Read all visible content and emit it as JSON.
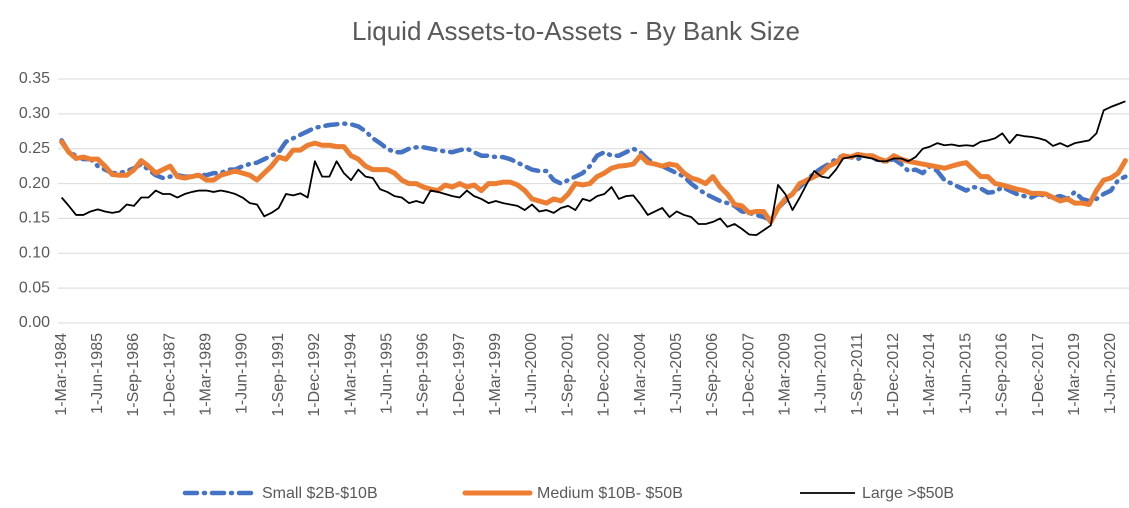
{
  "chart_data": {
    "type": "line",
    "title": "Liquid Assets-to-Assets - By Bank Size",
    "categories": [
      "1-Mar-1984",
      null,
      null,
      null,
      null,
      "1-Jun-1985",
      null,
      null,
      null,
      null,
      "1-Sep-1986",
      null,
      null,
      null,
      null,
      "1-Dec-1987",
      null,
      null,
      null,
      null,
      "1-Mar-1989",
      null,
      null,
      null,
      null,
      "1-Jun-1990",
      null,
      null,
      null,
      null,
      "1-Sep-1991",
      null,
      null,
      null,
      null,
      "1-Dec-1992",
      null,
      null,
      null,
      null,
      "1-Mar-1994",
      null,
      null,
      null,
      null,
      "1-Jun-1995",
      null,
      null,
      null,
      null,
      "1-Sep-1996",
      null,
      null,
      null,
      null,
      "1-Dec-1997",
      null,
      null,
      null,
      null,
      "1-Mar-1999",
      null,
      null,
      null,
      null,
      "1-Jun-2000",
      null,
      null,
      null,
      null,
      "1-Sep-2001",
      null,
      null,
      null,
      null,
      "1-Dec-2002",
      null,
      null,
      null,
      null,
      "1-Mar-2004",
      null,
      null,
      null,
      null,
      "1-Jun-2005",
      null,
      null,
      null,
      null,
      "1-Sep-2006",
      null,
      null,
      null,
      null,
      "1-Dec-2007",
      null,
      null,
      null,
      null,
      "1-Mar-2009",
      null,
      null,
      null,
      null,
      "1-Jun-2010",
      null,
      null,
      null,
      null,
      "1-Sep-2011",
      null,
      null,
      null,
      null,
      "1-Dec-2012",
      null,
      null,
      null,
      null,
      "1-Mar-2014",
      null,
      null,
      null,
      null,
      "1-Jun-2015",
      null,
      null,
      null,
      null,
      "1-Sep-2016",
      null,
      null,
      null,
      null,
      "1-Dec-2017",
      null,
      null,
      null,
      null,
      "1-Mar-2019",
      null,
      null,
      null,
      null,
      "1-Jun-2020",
      null,
      null
    ],
    "series": [
      {
        "name": "Small $2B-$10B",
        "color": "#4472c4",
        "dash": "dash-dot",
        "values": [
          0.262,
          0.245,
          0.24,
          0.235,
          0.235,
          0.225,
          0.22,
          0.215,
          0.215,
          0.218,
          0.222,
          0.228,
          0.22,
          0.212,
          0.208,
          0.21,
          0.212,
          0.21,
          0.21,
          0.213,
          0.212,
          0.215,
          0.215,
          0.22,
          0.22,
          0.225,
          0.228,
          0.23,
          0.235,
          0.24,
          0.245,
          0.26,
          0.265,
          0.27,
          0.275,
          0.28,
          0.282,
          0.284,
          0.285,
          0.286,
          0.285,
          0.282,
          0.275,
          0.265,
          0.258,
          0.25,
          0.245,
          0.245,
          0.25,
          0.252,
          0.252,
          0.25,
          0.248,
          0.246,
          0.245,
          0.248,
          0.25,
          0.245,
          0.24,
          0.24,
          0.238,
          0.238,
          0.235,
          0.23,
          0.225,
          0.22,
          0.218,
          0.218,
          0.205,
          0.2,
          0.205,
          0.21,
          0.215,
          0.225,
          0.24,
          0.245,
          0.24,
          0.24,
          0.245,
          0.25,
          0.245,
          0.235,
          0.228,
          0.225,
          0.22,
          0.215,
          0.21,
          0.2,
          0.192,
          0.185,
          0.18,
          0.175,
          0.172,
          0.168,
          0.16,
          0.158,
          0.155,
          0.152,
          0.148,
          0.165,
          0.175,
          0.185,
          0.195,
          0.205,
          0.215,
          0.222,
          0.228,
          0.235,
          0.24,
          0.238,
          0.235,
          0.24,
          0.238,
          0.232,
          0.232,
          0.235,
          0.228,
          0.218,
          0.22,
          0.215,
          0.225,
          0.218,
          0.205,
          0.2,
          0.195,
          0.19,
          0.195,
          0.193,
          0.187,
          0.188,
          0.195,
          0.19,
          0.185,
          0.182,
          0.18,
          0.185,
          0.182,
          0.18,
          0.182,
          0.178,
          0.188,
          0.178,
          0.175,
          0.178,
          0.185,
          0.19,
          0.205,
          0.21
        ]
      },
      {
        "name": "Medium $10B- $50B",
        "color": "#ed7d31",
        "values": [
          0.26,
          0.245,
          0.236,
          0.238,
          0.235,
          0.235,
          0.225,
          0.213,
          0.212,
          0.212,
          0.22,
          0.233,
          0.225,
          0.215,
          0.22,
          0.225,
          0.21,
          0.208,
          0.21,
          0.212,
          0.205,
          0.205,
          0.212,
          0.215,
          0.218,
          0.215,
          0.212,
          0.205,
          0.215,
          0.225,
          0.238,
          0.235,
          0.248,
          0.248,
          0.255,
          0.258,
          0.255,
          0.255,
          0.253,
          0.253,
          0.24,
          0.235,
          0.225,
          0.22,
          0.22,
          0.22,
          0.215,
          0.205,
          0.2,
          0.2,
          0.195,
          0.192,
          0.19,
          0.198,
          0.195,
          0.2,
          0.195,
          0.198,
          0.19,
          0.2,
          0.2,
          0.202,
          0.202,
          0.198,
          0.19,
          0.178,
          0.175,
          0.172,
          0.178,
          0.175,
          0.185,
          0.2,
          0.198,
          0.2,
          0.21,
          0.215,
          0.222,
          0.225,
          0.226,
          0.228,
          0.24,
          0.23,
          0.228,
          0.225,
          0.228,
          0.226,
          0.215,
          0.208,
          0.205,
          0.2,
          0.21,
          0.195,
          0.185,
          0.17,
          0.168,
          0.158,
          0.16,
          0.16,
          0.145,
          0.165,
          0.178,
          0.185,
          0.2,
          0.205,
          0.21,
          0.215,
          0.225,
          0.23,
          0.24,
          0.238,
          0.242,
          0.24,
          0.24,
          0.235,
          0.232,
          0.24,
          0.235,
          0.232,
          0.23,
          0.228,
          0.226,
          0.224,
          0.222,
          0.225,
          0.228,
          0.23,
          0.22,
          0.21,
          0.21,
          0.2,
          0.198,
          0.195,
          0.192,
          0.19,
          0.186,
          0.186,
          0.185,
          0.18,
          0.175,
          0.178,
          0.172,
          0.172,
          0.17,
          0.19,
          0.205,
          0.208,
          0.215,
          0.233
        ]
      },
      {
        "name": "Large >$50B",
        "color": "#000000",
        "values": [
          0.18,
          0.168,
          0.155,
          0.155,
          0.16,
          0.163,
          0.16,
          0.158,
          0.16,
          0.17,
          0.168,
          0.18,
          0.18,
          0.19,
          0.185,
          0.185,
          0.18,
          0.185,
          0.188,
          0.19,
          0.19,
          0.188,
          0.19,
          0.188,
          0.185,
          0.18,
          0.172,
          0.17,
          0.153,
          0.158,
          0.165,
          0.185,
          0.183,
          0.186,
          0.18,
          0.232,
          0.21,
          0.21,
          0.232,
          0.215,
          0.205,
          0.22,
          0.21,
          0.208,
          0.192,
          0.188,
          0.182,
          0.18,
          0.172,
          0.175,
          0.172,
          0.19,
          0.188,
          0.185,
          0.182,
          0.18,
          0.19,
          0.182,
          0.178,
          0.172,
          0.175,
          0.172,
          0.17,
          0.168,
          0.162,
          0.17,
          0.16,
          0.162,
          0.158,
          0.165,
          0.168,
          0.162,
          0.178,
          0.175,
          0.182,
          0.185,
          0.195,
          0.178,
          0.182,
          0.183,
          0.17,
          0.155,
          0.16,
          0.165,
          0.152,
          0.16,
          0.155,
          0.152,
          0.142,
          0.142,
          0.145,
          0.15,
          0.138,
          0.142,
          0.135,
          0.127,
          0.126,
          0.133,
          0.14,
          0.198,
          0.185,
          0.162,
          0.18,
          0.2,
          0.218,
          0.21,
          0.208,
          0.22,
          0.236,
          0.238,
          0.24,
          0.238,
          0.236,
          0.232,
          0.232,
          0.236,
          0.236,
          0.232,
          0.238,
          0.25,
          0.253,
          0.258,
          0.255,
          0.256,
          0.254,
          0.255,
          0.254,
          0.26,
          0.262,
          0.265,
          0.272,
          0.258,
          0.27,
          0.268,
          0.267,
          0.265,
          0.262,
          0.254,
          0.258,
          0.253,
          0.258,
          0.26,
          0.262,
          0.272,
          0.305,
          0.31,
          0.314,
          0.318
        ]
      }
    ],
    "ylim": [
      0,
      0.35
    ],
    "yticks": [
      {
        "value": 0,
        "label": "0.00"
      },
      0.05,
      {
        "value": 0.1,
        "label": "0.10"
      },
      0.15,
      {
        "value": 0.2,
        "label": "0.20"
      },
      0.25,
      {
        "value": 0.3,
        "label": "0.30"
      },
      0.35
    ],
    "grid": true,
    "legend": "bottom"
  }
}
